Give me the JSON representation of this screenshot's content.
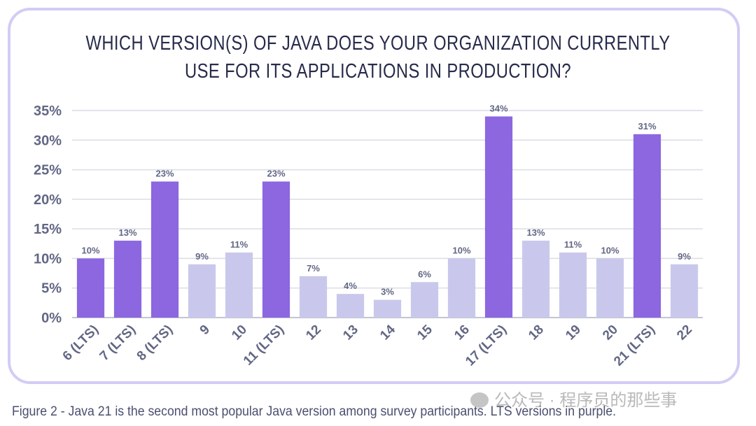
{
  "chart_data": {
    "type": "bar",
    "title": "WHICH VERSION(S) OF JAVA DOES YOUR ORGANIZATION CURRENTLY USE FOR ITS APPLICATIONS IN PRODUCTION?",
    "title_lines": [
      "WHICH VERSION(S) OF JAVA DOES YOUR ORGANIZATION CURRENTLY",
      "USE FOR ITS APPLICATIONS IN PRODUCTION?"
    ],
    "categories": [
      "6 (LTS)",
      "7 (LTS)",
      "8 (LTS)",
      "9",
      "10",
      "11 (LTS)",
      "12",
      "13",
      "14",
      "15",
      "16",
      "17 (LTS)",
      "18",
      "19",
      "20",
      "21 (LTS)",
      "22"
    ],
    "values": [
      10,
      13,
      23,
      9,
      11,
      23,
      7,
      4,
      3,
      6,
      10,
      34,
      13,
      11,
      10,
      31,
      9
    ],
    "data_labels": [
      "10%",
      "13%",
      "23%",
      "9%",
      "11%",
      "23%",
      "7%",
      "4%",
      "3%",
      "6%",
      "10%",
      "34%",
      "13%",
      "11%",
      "10%",
      "31%",
      "9%"
    ],
    "lts": [
      true,
      true,
      true,
      false,
      false,
      true,
      false,
      false,
      false,
      false,
      false,
      true,
      false,
      false,
      false,
      true,
      false
    ],
    "yticks": [
      "0%",
      "5%",
      "10%",
      "15%",
      "20%",
      "25%",
      "30%",
      "35%"
    ],
    "ylim": [
      0,
      35
    ],
    "xlabel": "",
    "ylabel": "",
    "grid": true,
    "colors": {
      "lts": "#8c67e0",
      "non_lts": "#c9c8ec",
      "grid": "#dcdce6",
      "text": "#626784"
    }
  },
  "caption": "Figure 2 - Java 21 is the second most popular Java version among survey participants. LTS versions in purple.",
  "watermark": "公众号 · 程序员的那些事"
}
